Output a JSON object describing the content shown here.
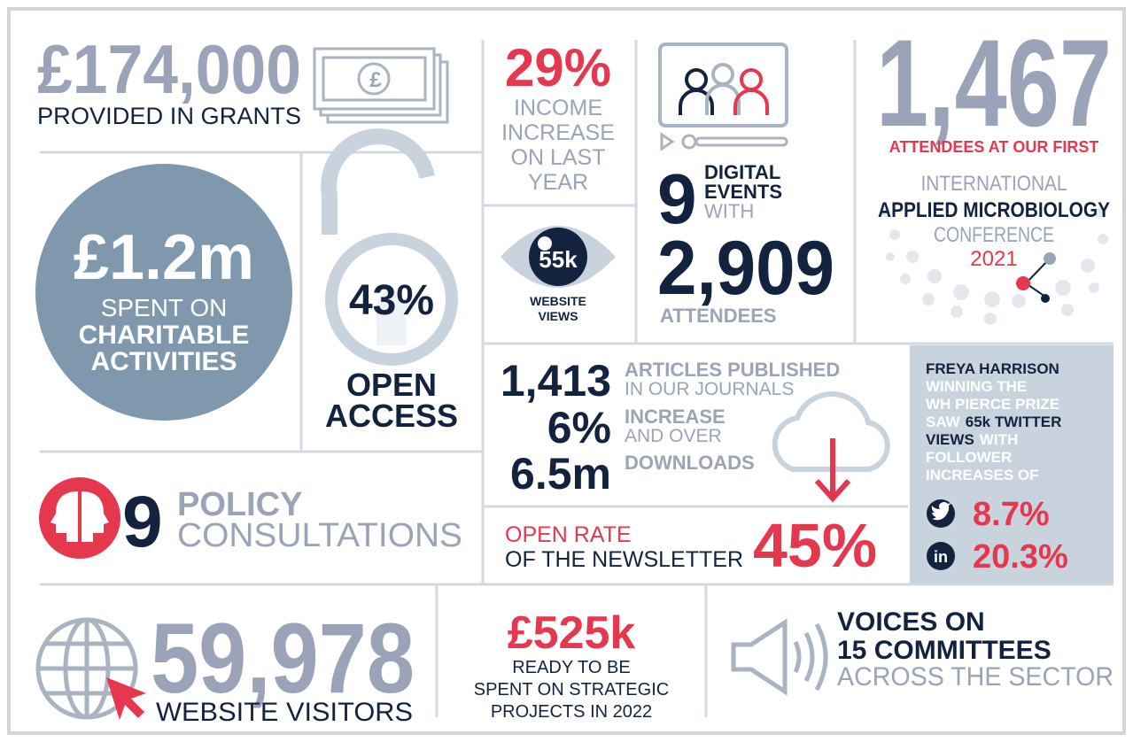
{
  "grants": {
    "value": "£174,000",
    "label": "PROVIDED IN GRANTS"
  },
  "income": {
    "value": "29%",
    "lines": [
      "INCOME",
      "INCREASE",
      "ON LAST",
      "YEAR"
    ]
  },
  "digital_events": {
    "count": "9",
    "lines": [
      "DIGITAL",
      "EVENTS",
      "WITH"
    ],
    "attendees": "2,909",
    "attendees_label": "ATTENDEES"
  },
  "conference": {
    "value": "1,467",
    "label": "ATTENDEES AT OUR FIRST",
    "lines": [
      "INTERNATIONAL",
      "APPLIED MICROBIOLOGY",
      "CONFERENCE",
      "2021"
    ]
  },
  "charitable": {
    "value": "£1.2m",
    "lines": [
      "SPENT ON",
      "CHARITABLE",
      "ACTIVITIES"
    ]
  },
  "open_access": {
    "value": "43%",
    "lines": [
      "OPEN",
      "ACCESS"
    ]
  },
  "website_views": {
    "value": "55k",
    "lines": [
      "WEBSITE",
      "VIEWS"
    ]
  },
  "articles": {
    "rows": [
      {
        "value": "1,413",
        "lines": [
          "ARTICLES PUBLISHED",
          "IN OUR JOURNALS"
        ]
      },
      {
        "value": "6%",
        "lines": [
          "INCREASE",
          "AND OVER"
        ]
      },
      {
        "value": "6.5m",
        "lines": [
          "DOWNLOADS"
        ]
      }
    ]
  },
  "newsletter": {
    "lines": [
      "OPEN RATE",
      "OF THE NEWSLETTER"
    ],
    "value": "45%"
  },
  "freya": {
    "name": "FREYA HARRISON",
    "text": [
      "WINNING THE",
      "WH PIERCE PRIZE",
      "SAW",
      "65k TWITTER",
      "VIEWS",
      "WITH",
      "FOLLOWER",
      "INCREASES OF"
    ],
    "twitter": "8.7%",
    "linkedin": "20.3%",
    "linkedin_icon": "in"
  },
  "policy": {
    "value": "9",
    "lines": [
      "POLICY",
      "CONSULTATIONS"
    ]
  },
  "visitors": {
    "value": "59,978",
    "label": "WEBSITE VISITORS"
  },
  "strategic": {
    "value": "£525k",
    "lines": [
      "READY TO BE",
      "SPENT ON STRATEGIC",
      "PROJECTS IN 2022"
    ]
  },
  "committees": {
    "lines": [
      "VOICES ON",
      "15 COMMITTEES",
      "ACROSS THE SECTOR"
    ]
  }
}
